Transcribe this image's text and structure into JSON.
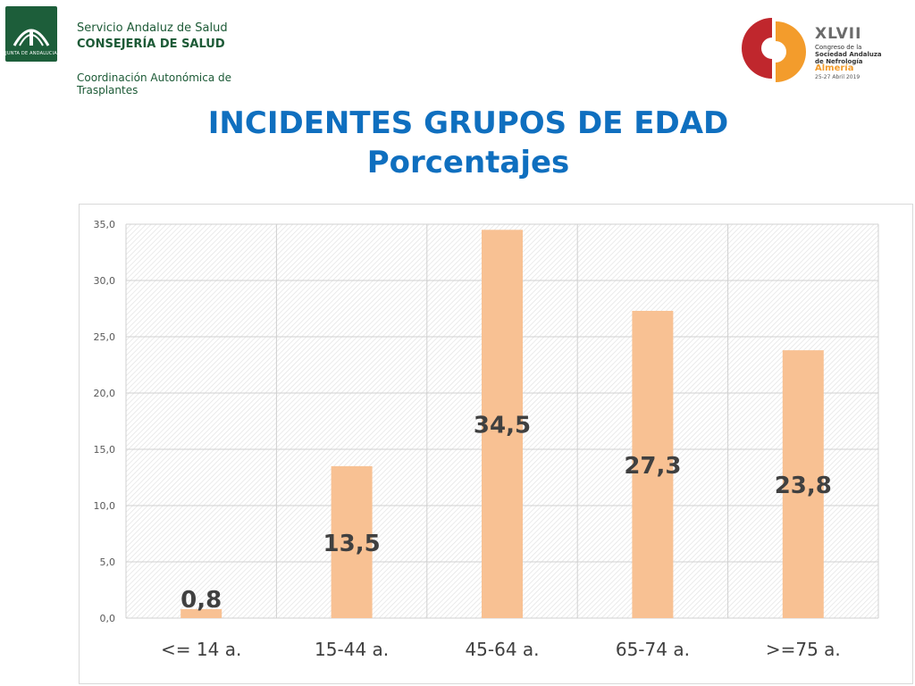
{
  "header": {
    "org_line1": "Servicio Andaluz de Salud",
    "org_line2": "CONSEJERÍA DE SALUD",
    "org_line3": "Coordinación Autonómica de Trasplantes",
    "emblem_caption": "JUNTA DE ANDALUCIA",
    "congress_number": "XLVII",
    "congress_line1": "Congreso de la",
    "congress_line2": "Sociedad Andaluza",
    "congress_line3": "de Nefrología",
    "congress_city": "Almería",
    "congress_dates": "25-27 Abril 2019"
  },
  "title": {
    "line1": "INCIDENTES GRUPOS DE EDAD",
    "line2": "Porcentajes"
  },
  "colors": {
    "title": "#0f6fbf",
    "bar": "#f8c193",
    "logo_green": "#1c5a36",
    "logo_red": "#c0272d",
    "logo_orange": "#f39c2c"
  },
  "chart_data": {
    "type": "bar",
    "categories": [
      "<= 14 a.",
      "15-44 a.",
      "45-64 a.",
      "65-74 a.",
      ">=75 a."
    ],
    "values": [
      0.8,
      13.5,
      34.5,
      27.3,
      23.8
    ],
    "data_labels": [
      "0,8",
      "13,5",
      "34,5",
      "27,3",
      "23,8"
    ],
    "y_ticks": [
      "0,0",
      "5,0",
      "10,0",
      "15,0",
      "20,0",
      "25,0",
      "30,0",
      "35,0"
    ],
    "ylim": [
      0,
      35
    ],
    "y_step": 5,
    "grid": true,
    "legend": "none"
  }
}
